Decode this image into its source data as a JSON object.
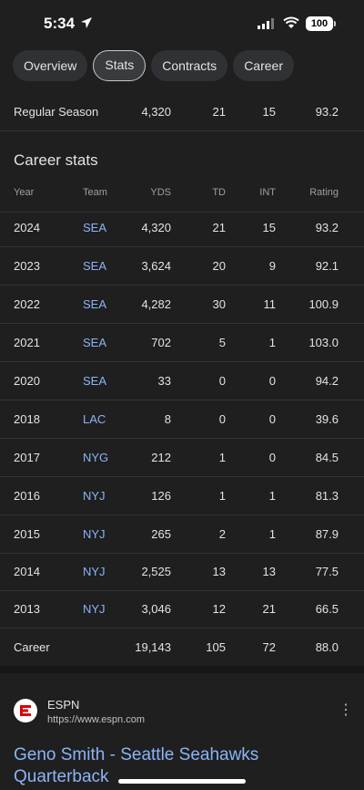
{
  "status": {
    "time": "5:34",
    "battery": "100"
  },
  "tabs": [
    {
      "label": "Overview"
    },
    {
      "label": "Stats"
    },
    {
      "label": "Contracts"
    },
    {
      "label": "Career"
    }
  ],
  "season": {
    "label": "Regular Season",
    "yds": "4,320",
    "td": "21",
    "int": "15",
    "rating": "93.2"
  },
  "career_title": "Career stats",
  "headers": {
    "year": "Year",
    "team": "Team",
    "yds": "YDS",
    "td": "TD",
    "int": "INT",
    "rating": "Rating"
  },
  "rows": [
    {
      "year": "2024",
      "team": "SEA",
      "yds": "4,320",
      "td": "21",
      "int": "15",
      "rating": "93.2"
    },
    {
      "year": "2023",
      "team": "SEA",
      "yds": "3,624",
      "td": "20",
      "int": "9",
      "rating": "92.1"
    },
    {
      "year": "2022",
      "team": "SEA",
      "yds": "4,282",
      "td": "30",
      "int": "11",
      "rating": "100.9"
    },
    {
      "year": "2021",
      "team": "SEA",
      "yds": "702",
      "td": "5",
      "int": "1",
      "rating": "103.0"
    },
    {
      "year": "2020",
      "team": "SEA",
      "yds": "33",
      "td": "0",
      "int": "0",
      "rating": "94.2"
    },
    {
      "year": "2018",
      "team": "LAC",
      "yds": "8",
      "td": "0",
      "int": "0",
      "rating": "39.6"
    },
    {
      "year": "2017",
      "team": "NYG",
      "yds": "212",
      "td": "1",
      "int": "0",
      "rating": "84.5"
    },
    {
      "year": "2016",
      "team": "NYJ",
      "yds": "126",
      "td": "1",
      "int": "1",
      "rating": "81.3"
    },
    {
      "year": "2015",
      "team": "NYJ",
      "yds": "265",
      "td": "2",
      "int": "1",
      "rating": "87.9"
    },
    {
      "year": "2014",
      "team": "NYJ",
      "yds": "2,525",
      "td": "13",
      "int": "13",
      "rating": "77.5"
    },
    {
      "year": "2013",
      "team": "NYJ",
      "yds": "3,046",
      "td": "12",
      "int": "21",
      "rating": "66.5"
    }
  ],
  "career": {
    "label": "Career",
    "yds": "19,143",
    "td": "105",
    "int": "72",
    "rating": "88.0"
  },
  "result": {
    "source": "ESPN",
    "url": "https://www.espn.com",
    "title": "Geno Smith - Seattle Seahawks Quarterback"
  },
  "colors": {
    "link": "#8ab4f8",
    "espn_red": "#d00"
  }
}
